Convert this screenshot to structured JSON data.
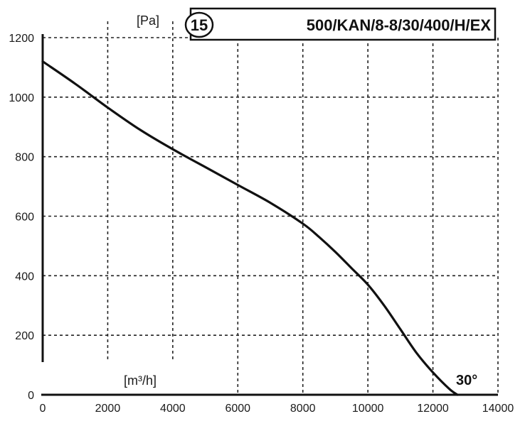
{
  "header": {
    "badge": "15",
    "model": "500/KAN/8-8/30/400/H/EX"
  },
  "chart_data": {
    "type": "line",
    "xlabel": "[m³/h]",
    "ylabel": "[Pa]",
    "xlim": [
      0,
      14000
    ],
    "ylim": [
      0,
      1200
    ],
    "x_ticks": [
      "0",
      "2000",
      "4000",
      "6000",
      "8000",
      "10000",
      "12000",
      "14000"
    ],
    "y_ticks": [
      "0",
      "200",
      "400",
      "600",
      "800",
      "1000",
      "1200"
    ],
    "grid": true,
    "series": [
      {
        "name": "30°",
        "x": [
          0,
          1000,
          2000,
          3000,
          4000,
          5000,
          6000,
          7000,
          8000,
          8500,
          9000,
          9500,
          10000,
          10500,
          11000,
          11500,
          12000,
          12500,
          12750
        ],
        "y": [
          1120,
          1045,
          965,
          890,
          825,
          765,
          705,
          645,
          575,
          530,
          480,
          425,
          370,
          300,
          220,
          140,
          75,
          20,
          0
        ]
      }
    ]
  }
}
